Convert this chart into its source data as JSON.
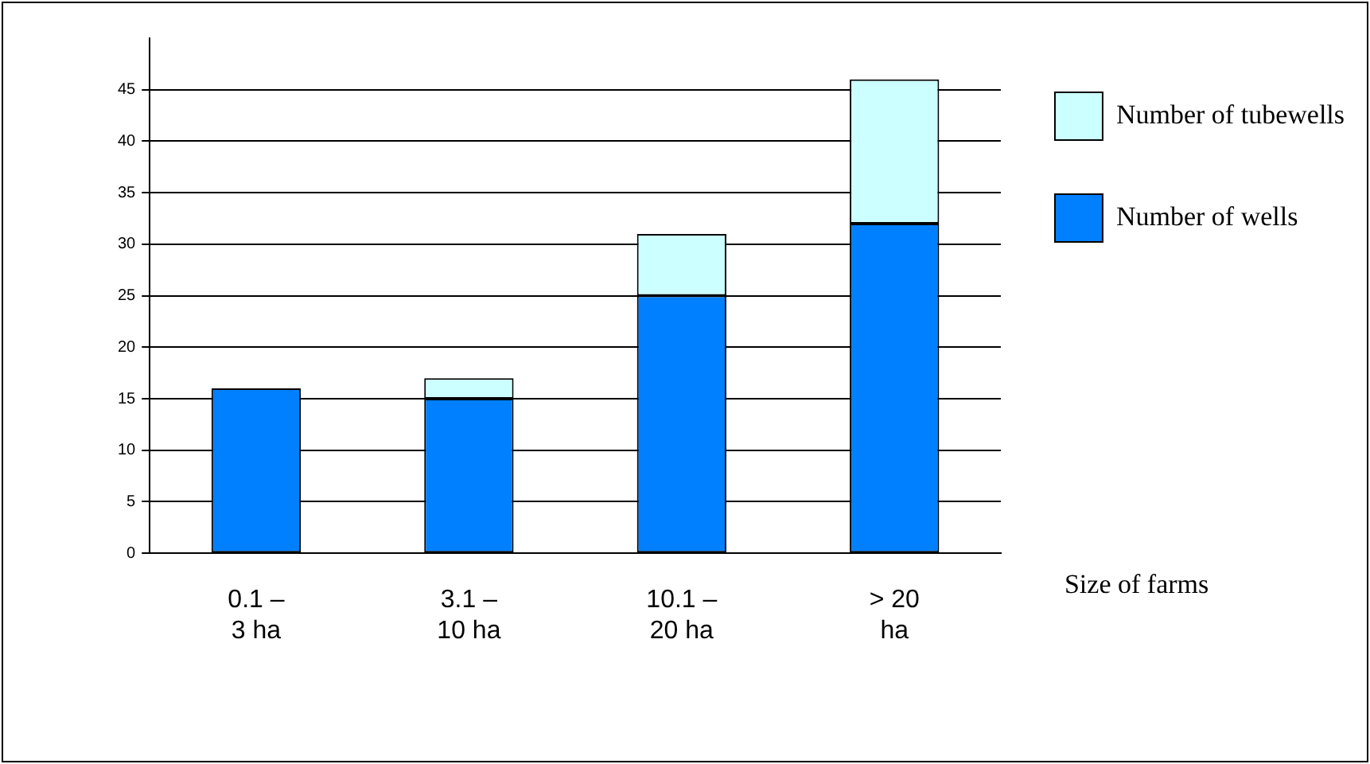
{
  "chart_data": {
    "type": "bar",
    "stacked": true,
    "xlabel": "Size of farms",
    "categories": [
      "0.1 – 3 ha",
      "3.1 – 10 ha",
      "10.1 – 20 ha",
      "> 20 ha"
    ],
    "series": [
      {
        "name": "Number of wells",
        "color": "#0080ff",
        "values": [
          16,
          15,
          25,
          32
        ]
      },
      {
        "name": "Number of tubewells",
        "color": "#ccffff",
        "values": [
          null,
          2,
          6,
          14
        ]
      }
    ],
    "ylim": [
      0,
      50
    ],
    "yticks": [
      0,
      5,
      10,
      15,
      20,
      25,
      30,
      35,
      40,
      45
    ],
    "grid": "y",
    "legend": "top right"
  }
}
